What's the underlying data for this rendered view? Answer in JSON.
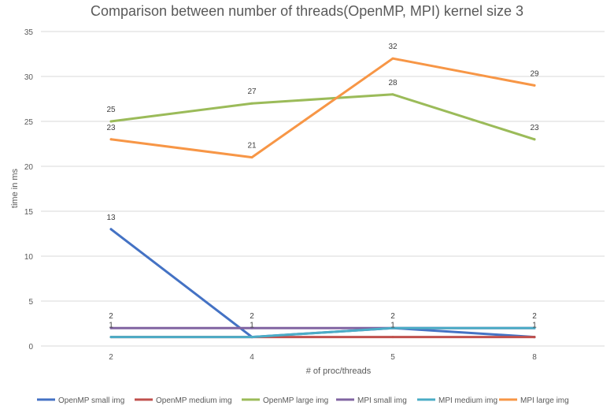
{
  "chart_data": {
    "type": "line",
    "title": "Comparison between number of threads(OpenMP, MPI) kernel size 3",
    "xlabel": "# of proc/threads",
    "ylabel": "time in ms",
    "categories": [
      "2",
      "4",
      "5",
      "8"
    ],
    "ylim": [
      0,
      35
    ],
    "yticks": [
      "0",
      "5",
      "10",
      "15",
      "20",
      "25",
      "30",
      "35"
    ],
    "grid": true,
    "legend_position": "bottom",
    "series": [
      {
        "name": "OpenMP small img",
        "color": "#4472c4",
        "values": [
          13,
          1,
          2,
          1
        ]
      },
      {
        "name": "OpenMP medium img",
        "color": "#c0504d",
        "values": [
          1,
          1,
          1,
          1
        ]
      },
      {
        "name": "OpenMP large img",
        "color": "#9bbb59",
        "values": [
          25,
          27,
          28,
          23
        ]
      },
      {
        "name": "MPI small img",
        "color": "#8064a2",
        "values": [
          2,
          2,
          2,
          2
        ]
      },
      {
        "name": "MPI medium img",
        "color": "#4bacc6",
        "values": [
          1,
          1,
          2,
          2
        ]
      },
      {
        "name": "MPI large img",
        "color": "#f79646",
        "values": [
          23,
          21,
          32,
          29
        ]
      }
    ],
    "data_labels": [
      {
        "series": 0,
        "point": 0,
        "text": "13"
      },
      {
        "series": 2,
        "point": 0,
        "text": "25"
      },
      {
        "series": 2,
        "point": 1,
        "text": "27"
      },
      {
        "series": 2,
        "point": 2,
        "text": "28"
      },
      {
        "series": 2,
        "point": 3,
        "text": "23"
      },
      {
        "series": 5,
        "point": 0,
        "text": "23"
      },
      {
        "series": 5,
        "point": 1,
        "text": "21"
      },
      {
        "series": 5,
        "point": 2,
        "text": "32"
      },
      {
        "series": 5,
        "point": 3,
        "text": "29"
      },
      {
        "series": 3,
        "point": 0,
        "text": "2"
      },
      {
        "series": 3,
        "point": 1,
        "text": "2"
      },
      {
        "series": 3,
        "point": 2,
        "text": "2"
      },
      {
        "series": 3,
        "point": 3,
        "text": "2"
      },
      {
        "series": 1,
        "point": 0,
        "text": "1"
      },
      {
        "series": 1,
        "point": 1,
        "text": "1"
      },
      {
        "series": 1,
        "point": 2,
        "text": "1"
      },
      {
        "series": 1,
        "point": 3,
        "text": "1"
      }
    ]
  }
}
